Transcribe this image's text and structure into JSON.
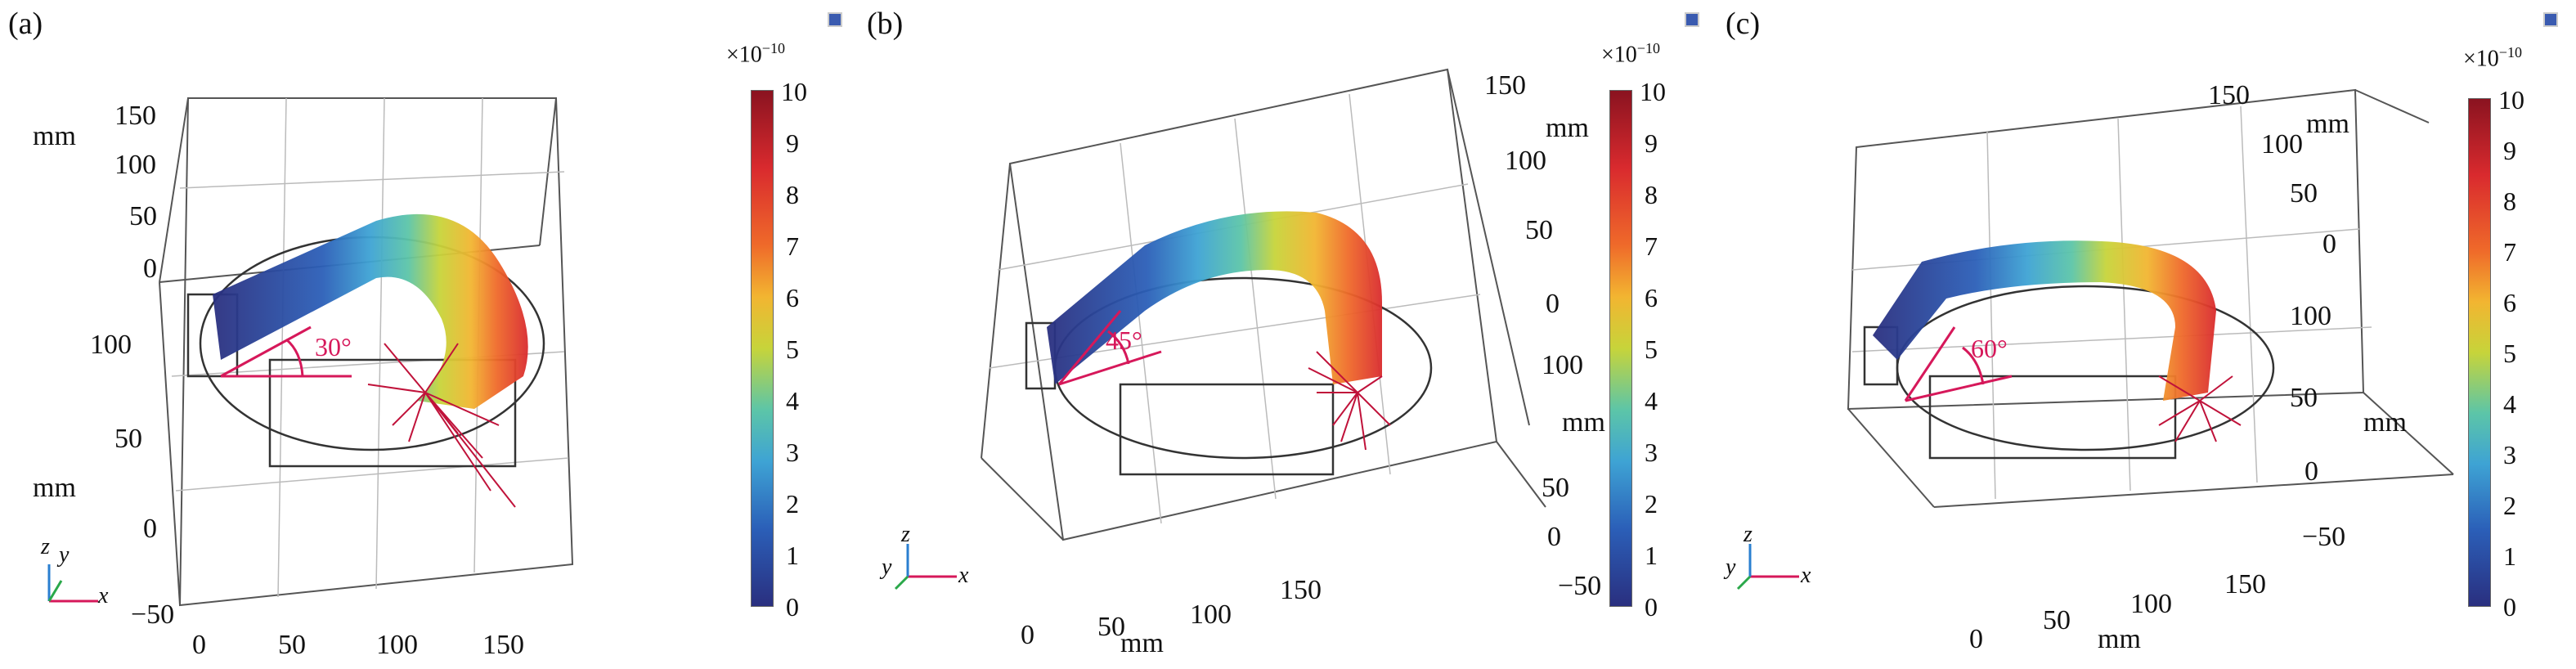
{
  "colorbar": {
    "multiplier": "×10",
    "exponent": "−10",
    "ticks": [
      "10",
      "9",
      "8",
      "7",
      "6",
      "5",
      "4",
      "3",
      "2",
      "1",
      "0"
    ]
  },
  "unit": "mm",
  "triad": {
    "x": "x",
    "y": "y",
    "z": "z"
  },
  "panels": [
    {
      "label": "(a)",
      "angle": "30°",
      "ticks_v1": [
        "150",
        "100",
        "50",
        "0"
      ],
      "ticks_v2": [
        "100",
        "50",
        "0",
        "−50"
      ],
      "ticks_h": [
        "0",
        "50",
        "100",
        "150"
      ]
    },
    {
      "label": "(b)",
      "angle": "45°",
      "ticks_v1": [
        "150",
        "100",
        "50",
        "0"
      ],
      "ticks_v2": [
        "100",
        "50",
        "0",
        "−50"
      ],
      "ticks_h": [
        "0",
        "50",
        "100",
        "150"
      ]
    },
    {
      "label": "(c)",
      "angle": "60°",
      "ticks_v1": [
        "150",
        "100",
        "50",
        "0"
      ],
      "ticks_v2": [
        "100",
        "50",
        "0",
        "−50"
      ],
      "ticks_h": [
        "0",
        "50",
        "100",
        "150"
      ]
    }
  ],
  "colors": {
    "colormap": [
      "#2a2f7f",
      "#2b5fb8",
      "#3ea3d4",
      "#5cc5a8",
      "#c7d43a",
      "#f2b531",
      "#ef6a2a",
      "#d92a2e",
      "#8a1320"
    ],
    "annotation": "#d6185a",
    "frame": "#333333"
  }
}
